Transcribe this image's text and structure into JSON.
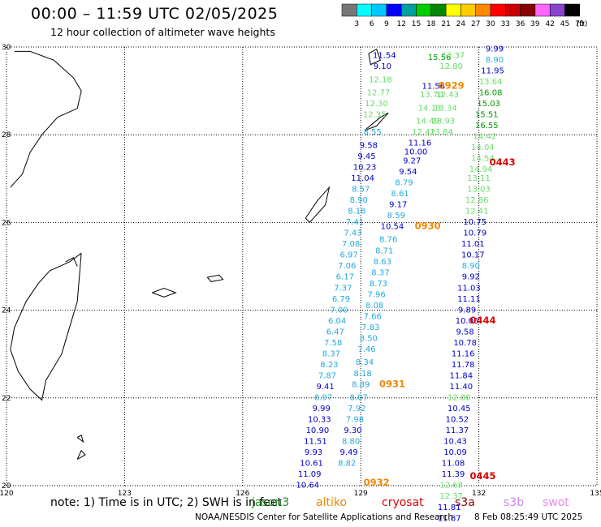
{
  "title": "00:00 – 11:59 UTC 02/05/2025",
  "subtitle": "12 hour collection of altimeter wave heights",
  "legend": {
    "unit": "(ft)",
    "bins": [
      {
        "label": "3",
        "color": "#777777"
      },
      {
        "label": "6",
        "color": "#00ffff"
      },
      {
        "label": "9",
        "color": "#00c8ff"
      },
      {
        "label": "12",
        "color": "#0000ff"
      },
      {
        "label": "15",
        "color": "#00a0a0"
      },
      {
        "label": "18",
        "color": "#00cc00"
      },
      {
        "label": "21",
        "color": "#008800"
      },
      {
        "label": "24",
        "color": "#ffff00"
      },
      {
        "label": "27",
        "color": "#ffcc00"
      },
      {
        "label": "30",
        "color": "#ff8800"
      },
      {
        "label": "33",
        "color": "#ff0000"
      },
      {
        "label": "36",
        "color": "#cc0000"
      },
      {
        "label": "39",
        "color": "#880000"
      },
      {
        "label": "42",
        "color": "#ff66ff"
      },
      {
        "label": "45",
        "color": "#8844cc"
      },
      {
        "label": "70",
        "color": "#000000"
      }
    ]
  },
  "axes": {
    "lon_labels": [
      "120",
      "123",
      "126",
      "129",
      "132",
      "135"
    ],
    "lat_labels": [
      "30",
      "28",
      "26",
      "24",
      "22",
      "20"
    ]
  },
  "map_extent": {
    "lon": [
      120,
      135
    ],
    "lat": [
      20,
      30
    ]
  },
  "track_times": [
    {
      "label": "0929",
      "lon": 131.3,
      "lat": 29.05,
      "color": "#ee8800"
    },
    {
      "label": "0443",
      "lon": 132.6,
      "lat": 27.3,
      "color": "#dd0000"
    },
    {
      "label": "0930",
      "lon": 130.7,
      "lat": 25.85,
      "color": "#ee8800"
    },
    {
      "label": "0444",
      "lon": 132.1,
      "lat": 23.7,
      "color": "#dd0000"
    },
    {
      "label": "0931",
      "lon": 129.8,
      "lat": 22.25,
      "color": "#ee8800"
    },
    {
      "label": "0445",
      "lon": 132.1,
      "lat": 20.15,
      "color": "#dd0000"
    },
    {
      "label": "0932",
      "lon": 129.4,
      "lat": 20.0,
      "color": "#ee8800"
    }
  ],
  "tracks": [
    {
      "name": "track-a",
      "points": [
        {
          "lon": 129.6,
          "lat": 29.75,
          "v": "11.54",
          "c": "#0000cc"
        },
        {
          "lon": 129.55,
          "lat": 29.5,
          "v": "9.10",
          "c": "#0000cc"
        },
        {
          "lon": 129.5,
          "lat": 29.2,
          "v": "12.18",
          "c": "#66dd66"
        },
        {
          "lon": 129.45,
          "lat": 28.9,
          "v": "12.77",
          "c": "#66dd66"
        },
        {
          "lon": 129.4,
          "lat": 28.65,
          "v": "12.30",
          "c": "#66dd66"
        },
        {
          "lon": 129.35,
          "lat": 28.4,
          "v": "12.35",
          "c": "#66dd66"
        },
        {
          "lon": 129.3,
          "lat": 28.0,
          "v": "8.55",
          "c": "#22aadd"
        },
        {
          "lon": 129.2,
          "lat": 27.7,
          "v": "9.58",
          "c": "#0000cc"
        },
        {
          "lon": 129.15,
          "lat": 27.45,
          "v": "9.45",
          "c": "#0000cc"
        },
        {
          "lon": 129.1,
          "lat": 27.2,
          "v": "10.23",
          "c": "#0000cc"
        },
        {
          "lon": 129.05,
          "lat": 26.95,
          "v": "11.04",
          "c": "#0000cc"
        },
        {
          "lon": 129.0,
          "lat": 26.7,
          "v": "8.57",
          "c": "#22aadd"
        },
        {
          "lon": 128.95,
          "lat": 26.45,
          "v": "8.90",
          "c": "#22aadd"
        },
        {
          "lon": 128.9,
          "lat": 26.2,
          "v": "8.18",
          "c": "#22aadd"
        },
        {
          "lon": 128.85,
          "lat": 25.95,
          "v": "7.41",
          "c": "#22aadd"
        },
        {
          "lon": 128.8,
          "lat": 25.7,
          "v": "7.43",
          "c": "#22aadd"
        },
        {
          "lon": 128.75,
          "lat": 25.45,
          "v": "7.08",
          "c": "#22aadd"
        },
        {
          "lon": 128.7,
          "lat": 25.2,
          "v": "6.97",
          "c": "#22aadd"
        },
        {
          "lon": 128.65,
          "lat": 24.95,
          "v": "7.06",
          "c": "#22aadd"
        },
        {
          "lon": 128.6,
          "lat": 24.7,
          "v": "6.17",
          "c": "#22aadd"
        },
        {
          "lon": 128.55,
          "lat": 24.45,
          "v": "7.37",
          "c": "#22aadd"
        },
        {
          "lon": 128.5,
          "lat": 24.2,
          "v": "6.79",
          "c": "#22aadd"
        },
        {
          "lon": 128.45,
          "lat": 23.95,
          "v": "7.00",
          "c": "#22aadd"
        },
        {
          "lon": 128.4,
          "lat": 23.7,
          "v": "6.04",
          "c": "#22aadd"
        },
        {
          "lon": 128.35,
          "lat": 23.45,
          "v": "6.47",
          "c": "#22aadd"
        },
        {
          "lon": 128.3,
          "lat": 23.2,
          "v": "7.58",
          "c": "#22aadd"
        },
        {
          "lon": 128.25,
          "lat": 22.95,
          "v": "8.37",
          "c": "#22aadd"
        },
        {
          "lon": 128.2,
          "lat": 22.7,
          "v": "8.23",
          "c": "#22aadd"
        },
        {
          "lon": 128.15,
          "lat": 22.45,
          "v": "7.87",
          "c": "#22aadd"
        },
        {
          "lon": 128.1,
          "lat": 22.2,
          "v": "9.41",
          "c": "#0000cc"
        },
        {
          "lon": 128.05,
          "lat": 21.95,
          "v": "8.97",
          "c": "#22aadd"
        },
        {
          "lon": 128.0,
          "lat": 21.7,
          "v": "9.99",
          "c": "#0000cc"
        },
        {
          "lon": 127.95,
          "lat": 21.45,
          "v": "10.33",
          "c": "#0000cc"
        },
        {
          "lon": 127.9,
          "lat": 21.2,
          "v": "10.90",
          "c": "#0000cc"
        },
        {
          "lon": 127.85,
          "lat": 20.95,
          "v": "11.51",
          "c": "#0000cc"
        },
        {
          "lon": 127.8,
          "lat": 20.7,
          "v": "9.93",
          "c": "#0000cc"
        },
        {
          "lon": 127.75,
          "lat": 20.45,
          "v": "10.61",
          "c": "#0000cc"
        },
        {
          "lon": 127.7,
          "lat": 20.2,
          "v": "11.09",
          "c": "#0000cc"
        },
        {
          "lon": 127.65,
          "lat": 19.95,
          "v": "10.64",
          "c": "#0000cc"
        }
      ]
    },
    {
      "name": "track-b",
      "points": [
        {
          "lon": 131.0,
          "lat": 29.7,
          "v": "15.56",
          "c": "#009900"
        },
        {
          "lon": 130.85,
          "lat": 29.05,
          "v": "11.56",
          "c": "#0000cc"
        },
        {
          "lon": 130.8,
          "lat": 28.85,
          "v": "13.70",
          "c": "#66dd66"
        },
        {
          "lon": 130.75,
          "lat": 28.55,
          "v": "14.13",
          "c": "#66dd66"
        },
        {
          "lon": 130.7,
          "lat": 28.25,
          "v": "14.49",
          "c": "#66dd66"
        },
        {
          "lon": 130.6,
          "lat": 28.0,
          "v": "12.42",
          "c": "#66dd66"
        },
        {
          "lon": 130.5,
          "lat": 27.75,
          "v": "11.16",
          "c": "#0000cc"
        },
        {
          "lon": 130.4,
          "lat": 27.55,
          "v": "10.00",
          "c": "#0000cc"
        },
        {
          "lon": 130.3,
          "lat": 27.35,
          "v": "9.27",
          "c": "#0000cc"
        },
        {
          "lon": 130.2,
          "lat": 27.1,
          "v": "9.54",
          "c": "#0000cc"
        },
        {
          "lon": 130.1,
          "lat": 26.85,
          "v": "8.79",
          "c": "#22aadd"
        },
        {
          "lon": 130.0,
          "lat": 26.6,
          "v": "8.61",
          "c": "#22aadd"
        },
        {
          "lon": 129.95,
          "lat": 26.35,
          "v": "9.17",
          "c": "#0000cc"
        },
        {
          "lon": 129.9,
          "lat": 26.1,
          "v": "8.59",
          "c": "#22aadd"
        },
        {
          "lon": 129.8,
          "lat": 25.85,
          "v": "10.54",
          "c": "#0000cc"
        },
        {
          "lon": 129.7,
          "lat": 25.55,
          "v": "8.76",
          "c": "#22aadd"
        },
        {
          "lon": 129.6,
          "lat": 25.3,
          "v": "8.71",
          "c": "#22aadd"
        },
        {
          "lon": 129.55,
          "lat": 25.05,
          "v": "8.63",
          "c": "#22aadd"
        },
        {
          "lon": 129.5,
          "lat": 24.8,
          "v": "8.37",
          "c": "#22aadd"
        },
        {
          "lon": 129.45,
          "lat": 24.55,
          "v": "8.73",
          "c": "#22aadd"
        },
        {
          "lon": 129.4,
          "lat": 24.3,
          "v": "7.96",
          "c": "#22aadd"
        },
        {
          "lon": 129.35,
          "lat": 24.05,
          "v": "8.08",
          "c": "#22aadd"
        },
        {
          "lon": 129.3,
          "lat": 23.8,
          "v": "7.66",
          "c": "#22aadd"
        },
        {
          "lon": 129.25,
          "lat": 23.55,
          "v": "7.83",
          "c": "#22aadd"
        },
        {
          "lon": 129.2,
          "lat": 23.3,
          "v": "8.50",
          "c": "#22aadd"
        },
        {
          "lon": 129.15,
          "lat": 23.05,
          "v": "7.46",
          "c": "#22aadd"
        },
        {
          "lon": 129.1,
          "lat": 22.75,
          "v": "8.34",
          "c": "#22aadd"
        },
        {
          "lon": 129.05,
          "lat": 22.5,
          "v": "8.18",
          "c": "#22aadd"
        },
        {
          "lon": 129.0,
          "lat": 22.25,
          "v": "8.89",
          "c": "#22aadd"
        },
        {
          "lon": 128.95,
          "lat": 21.95,
          "v": "8.07",
          "c": "#22aadd"
        },
        {
          "lon": 128.9,
          "lat": 21.7,
          "v": "7.92",
          "c": "#22aadd"
        },
        {
          "lon": 128.85,
          "lat": 21.45,
          "v": "7.98",
          "c": "#22aadd"
        },
        {
          "lon": 128.8,
          "lat": 21.2,
          "v": "9.30",
          "c": "#0000cc"
        },
        {
          "lon": 128.75,
          "lat": 20.95,
          "v": "8.80",
          "c": "#22aadd"
        },
        {
          "lon": 128.7,
          "lat": 20.7,
          "v": "9.49",
          "c": "#0000cc"
        },
        {
          "lon": 128.65,
          "lat": 20.45,
          "v": "8.82",
          "c": "#22aadd"
        }
      ]
    },
    {
      "name": "track-c",
      "points": [
        {
          "lon": 131.35,
          "lat": 29.75,
          "v": "13.37",
          "c": "#66dd66"
        },
        {
          "lon": 131.3,
          "lat": 29.5,
          "v": "12.80",
          "c": "#66dd66"
        },
        {
          "lon": 131.2,
          "lat": 28.85,
          "v": "12.43",
          "c": "#66dd66"
        },
        {
          "lon": 131.15,
          "lat": 28.55,
          "v": "13.34",
          "c": "#66dd66"
        },
        {
          "lon": 131.1,
          "lat": 28.25,
          "v": "13.93",
          "c": "#66dd66"
        },
        {
          "lon": 131.05,
          "lat": 28.0,
          "v": "13.84",
          "c": "#66dd66"
        }
      ]
    },
    {
      "name": "track-d",
      "points": [
        {
          "lon": 132.4,
          "lat": 29.9,
          "v": "9.99",
          "c": "#0000cc"
        },
        {
          "lon": 132.4,
          "lat": 29.65,
          "v": "8.90",
          "c": "#22aadd"
        },
        {
          "lon": 132.35,
          "lat": 29.4,
          "v": "11.95",
          "c": "#0000cc"
        },
        {
          "lon": 132.3,
          "lat": 29.15,
          "v": "13.64",
          "c": "#66dd66"
        },
        {
          "lon": 132.3,
          "lat": 28.9,
          "v": "16.08",
          "c": "#009900"
        },
        {
          "lon": 132.25,
          "lat": 28.65,
          "v": "15.03",
          "c": "#009900"
        },
        {
          "lon": 132.2,
          "lat": 28.4,
          "v": "15.51",
          "c": "#009900"
        },
        {
          "lon": 132.2,
          "lat": 28.15,
          "v": "16.55",
          "c": "#009900"
        },
        {
          "lon": 132.15,
          "lat": 27.9,
          "v": "14.42",
          "c": "#66dd66"
        },
        {
          "lon": 132.1,
          "lat": 27.65,
          "v": "14.04",
          "c": "#66dd66"
        },
        {
          "lon": 132.1,
          "lat": 27.4,
          "v": "14.54",
          "c": "#66dd66"
        },
        {
          "lon": 132.05,
          "lat": 27.15,
          "v": "14.94",
          "c": "#66dd66"
        },
        {
          "lon": 132.0,
          "lat": 26.95,
          "v": "13.11",
          "c": "#66dd66"
        },
        {
          "lon": 132.0,
          "lat": 26.7,
          "v": "13.03",
          "c": "#66dd66"
        },
        {
          "lon": 131.95,
          "lat": 26.45,
          "v": "12.86",
          "c": "#66dd66"
        },
        {
          "lon": 131.95,
          "lat": 26.2,
          "v": "12.41",
          "c": "#66dd66"
        },
        {
          "lon": 131.9,
          "lat": 25.95,
          "v": "10.75",
          "c": "#0000cc"
        },
        {
          "lon": 131.9,
          "lat": 25.7,
          "v": "10.79",
          "c": "#0000cc"
        },
        {
          "lon": 131.85,
          "lat": 25.45,
          "v": "11.01",
          "c": "#0000cc"
        },
        {
          "lon": 131.85,
          "lat": 25.2,
          "v": "10.17",
          "c": "#0000cc"
        },
        {
          "lon": 131.8,
          "lat": 24.95,
          "v": "8.90",
          "c": "#22aadd"
        },
        {
          "lon": 131.8,
          "lat": 24.7,
          "v": "9.92",
          "c": "#0000cc"
        },
        {
          "lon": 131.75,
          "lat": 24.45,
          "v": "11.03",
          "c": "#0000cc"
        },
        {
          "lon": 131.75,
          "lat": 24.2,
          "v": "11.11",
          "c": "#0000cc"
        },
        {
          "lon": 131.7,
          "lat": 23.95,
          "v": "9.89",
          "c": "#0000cc"
        },
        {
          "lon": 131.7,
          "lat": 23.7,
          "v": "10.06",
          "c": "#0000cc"
        },
        {
          "lon": 131.65,
          "lat": 23.45,
          "v": "9.58",
          "c": "#0000cc"
        },
        {
          "lon": 131.65,
          "lat": 23.2,
          "v": "10.78",
          "c": "#0000cc"
        },
        {
          "lon": 131.6,
          "lat": 22.95,
          "v": "11.16",
          "c": "#0000cc"
        },
        {
          "lon": 131.6,
          "lat": 22.7,
          "v": "11.78",
          "c": "#0000cc"
        },
        {
          "lon": 131.55,
          "lat": 22.45,
          "v": "11.84",
          "c": "#0000cc"
        },
        {
          "lon": 131.55,
          "lat": 22.2,
          "v": "11.40",
          "c": "#0000cc"
        },
        {
          "lon": 131.5,
          "lat": 21.95,
          "v": "12.80",
          "c": "#66dd66"
        },
        {
          "lon": 131.5,
          "lat": 21.7,
          "v": "10.45",
          "c": "#0000cc"
        },
        {
          "lon": 131.45,
          "lat": 21.45,
          "v": "10.52",
          "c": "#0000cc"
        },
        {
          "lon": 131.45,
          "lat": 21.2,
          "v": "11.37",
          "c": "#0000cc"
        },
        {
          "lon": 131.4,
          "lat": 20.95,
          "v": "10.43",
          "c": "#0000cc"
        },
        {
          "lon": 131.4,
          "lat": 20.7,
          "v": "10.09",
          "c": "#0000cc"
        },
        {
          "lon": 131.35,
          "lat": 20.45,
          "v": "11.08",
          "c": "#0000cc"
        },
        {
          "lon": 131.35,
          "lat": 20.2,
          "v": "11.39",
          "c": "#0000cc"
        },
        {
          "lon": 131.3,
          "lat": 19.95,
          "v": "12.68",
          "c": "#66dd66"
        },
        {
          "lon": 131.3,
          "lat": 19.7,
          "v": "12.37",
          "c": "#66dd66"
        },
        {
          "lon": 131.25,
          "lat": 19.45,
          "v": "11.81",
          "c": "#0000cc"
        },
        {
          "lon": 131.25,
          "lat": 19.2,
          "v": "11.87",
          "c": "#0000cc"
        }
      ]
    }
  ],
  "footer": {
    "note": "note: 1) Time is in UTC; 2) SWH is in feet",
    "satellites": [
      {
        "label": "jason3",
        "color": "#228822"
      },
      {
        "label": "altiko",
        "color": "#ee8800"
      },
      {
        "label": "cryosat",
        "color": "#dd0000"
      },
      {
        "label": "s3a",
        "color": "#880000"
      },
      {
        "label": "s3b",
        "color": "#cc88ee"
      },
      {
        "label": "swot",
        "color": "#ee88ee"
      }
    ],
    "credit": "NOAA/NESDIS Center for Satellite Applications and Research",
    "timestamp": "8 Feb 08:25:49 UTC 2025"
  }
}
